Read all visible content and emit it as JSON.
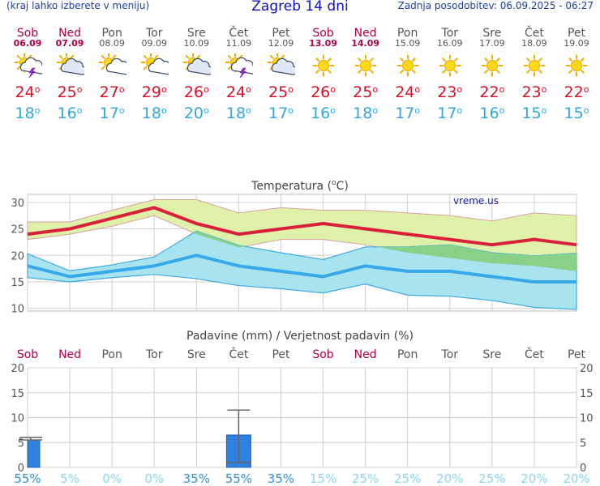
{
  "header": {
    "left": "(kraj lahko izberete v meniju)",
    "title": "Zagreb 14 dni",
    "right": "Zadnja posodobitev: 06.09.2025 - 06:27"
  },
  "days": [
    {
      "name": "Sob",
      "date": "06.09",
      "weekend": true,
      "icon": "sun-cloud-lightning-icon",
      "tmax": "24",
      "tmin": "18"
    },
    {
      "name": "Ned",
      "date": "07.09",
      "weekend": true,
      "icon": "cloudy-sun-icon",
      "tmax": "25",
      "tmin": "16"
    },
    {
      "name": "Pon",
      "date": "08.09",
      "weekend": false,
      "icon": "partly-cloudy-icon",
      "tmax": "27",
      "tmin": "17"
    },
    {
      "name": "Tor",
      "date": "09.09",
      "weekend": false,
      "icon": "partly-cloudy-icon",
      "tmax": "29",
      "tmin": "18"
    },
    {
      "name": "Sre",
      "date": "10.09",
      "weekend": false,
      "icon": "cloudy-sun-icon",
      "tmax": "26",
      "tmin": "20"
    },
    {
      "name": "Čet",
      "date": "11.09",
      "weekend": false,
      "icon": "sun-cloud-lightning-icon",
      "tmax": "24",
      "tmin": "18"
    },
    {
      "name": "Pet",
      "date": "12.09",
      "weekend": false,
      "icon": "cloudy-sun-icon",
      "tmax": "25",
      "tmin": "17"
    },
    {
      "name": "Sob",
      "date": "13.09",
      "weekend": true,
      "icon": "sun-icon",
      "tmax": "26",
      "tmin": "16"
    },
    {
      "name": "Ned",
      "date": "14.09",
      "weekend": true,
      "icon": "sun-icon",
      "tmax": "25",
      "tmin": "18"
    },
    {
      "name": "Pon",
      "date": "15.09",
      "weekend": false,
      "icon": "sun-icon",
      "tmax": "24",
      "tmin": "17"
    },
    {
      "name": "Tor",
      "date": "16.09",
      "weekend": false,
      "icon": "sun-icon",
      "tmax": "23",
      "tmin": "17"
    },
    {
      "name": "Sre",
      "date": "17.09",
      "weekend": false,
      "icon": "sun-icon",
      "tmax": "22",
      "tmin": "16"
    },
    {
      "name": "Čet",
      "date": "18.09",
      "weekend": false,
      "icon": "sun-icon",
      "tmax": "23",
      "tmin": "15"
    },
    {
      "name": "Pet",
      "date": "19.09",
      "weekend": false,
      "icon": "sun-icon",
      "tmax": "22",
      "tmin": "15"
    }
  ],
  "degree_sign": "o",
  "colors": {
    "max": "#d8203a",
    "min": "#38a8e8",
    "weekend": "#b0004a",
    "band_max": "#dff0a8",
    "band_min": "#a8e4f0",
    "band_overlap": "#88d288",
    "precip": "#3080e0",
    "prob": "#30a8e0"
  },
  "chart_data": [
    {
      "type": "line",
      "title": "Temperatura (°C)",
      "title_text": "Temperatura (",
      "title_unit": "C)",
      "watermark": "vreme.us",
      "x": [
        "Sob",
        "Ned",
        "Pon",
        "Tor",
        "Sre",
        "Čet",
        "Pet",
        "Sob",
        "Ned",
        "Pon",
        "Tor",
        "Sre",
        "Čet",
        "Pet"
      ],
      "ylim": [
        9.5,
        31.5
      ],
      "yticks": [
        "10",
        "15",
        "20",
        "25",
        "30"
      ],
      "grid": true,
      "series": [
        {
          "name": "max",
          "values": [
            24,
            25,
            27,
            29,
            26,
            24,
            25,
            26,
            25,
            24,
            23,
            22,
            23,
            22
          ],
          "range_low": [
            23,
            24,
            25.5,
            27.5,
            24,
            21.5,
            23,
            23,
            22,
            20.5,
            19.5,
            18.5,
            18,
            17
          ],
          "range_high": [
            26.3,
            26.3,
            28.5,
            30.5,
            30.5,
            28,
            29,
            28.5,
            28.5,
            28,
            27.5,
            26.5,
            28,
            27.5
          ]
        },
        {
          "name": "min",
          "values": [
            18,
            16,
            17,
            18,
            20,
            18,
            17,
            16,
            18,
            17,
            17,
            16,
            15,
            15
          ],
          "range_low": [
            15.8,
            15,
            15.8,
            16.4,
            15.6,
            14.3,
            13.7,
            12.9,
            14.6,
            12.5,
            12.3,
            11.5,
            10.2,
            9.8
          ],
          "range_high": [
            20.3,
            17.1,
            18.2,
            19.7,
            24.6,
            21.9,
            20.5,
            19.2,
            21.6,
            21.6,
            22,
            20.5,
            19.9,
            20.4
          ]
        }
      ]
    },
    {
      "type": "bar",
      "title": "Padavine (mm) / Verjetnost padavin (%)",
      "categories": [
        "Sob",
        "Ned",
        "Pon",
        "Tor",
        "Sre",
        "Čet",
        "Pet",
        "Sob",
        "Ned",
        "Pon",
        "Tor",
        "Sre",
        "Čet",
        "Pet"
      ],
      "ylim": [
        0,
        20
      ],
      "yticks": [
        "0",
        "5",
        "10",
        "15",
        "20"
      ],
      "values": [
        5.5,
        0,
        0,
        0,
        0,
        6.5,
        0,
        0,
        0,
        0,
        0,
        0,
        0,
        0
      ],
      "error_low": [
        5.5,
        null,
        null,
        null,
        null,
        1,
        null,
        null,
        null,
        null,
        null,
        null,
        null,
        null
      ],
      "error_high": [
        6,
        null,
        null,
        null,
        null,
        11.5,
        null,
        null,
        null,
        null,
        null,
        null,
        null,
        null
      ],
      "probability": [
        "55%",
        "5%",
        "0%",
        "0%",
        "35%",
        "55%",
        "35%",
        "15%",
        "25%",
        "25%",
        "20%",
        "25%",
        "20%",
        "20%"
      ],
      "probability_values": [
        55,
        5,
        0,
        0,
        35,
        55,
        35,
        15,
        25,
        25,
        20,
        25,
        20,
        20
      ]
    }
  ]
}
